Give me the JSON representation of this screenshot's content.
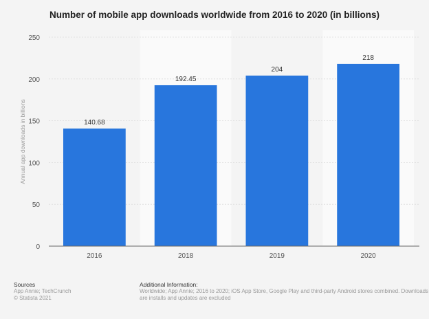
{
  "chart_data": {
    "type": "bar",
    "title": "Number of mobile app downloads worldwide from 2016 to 2020 (in billions)",
    "categories": [
      "2016",
      "2018",
      "2019",
      "2020"
    ],
    "values": [
      140.68,
      192.45,
      204,
      218
    ],
    "value_labels": [
      "140.68",
      "192.45",
      "204",
      "218"
    ],
    "xlabel": "",
    "ylabel": "Annual app downloads in billions",
    "ylim": [
      0,
      250
    ],
    "yticks": [
      0,
      50,
      100,
      150,
      200,
      250
    ],
    "grid": true,
    "bar_color": "#2876dd"
  },
  "footer": {
    "sources_heading": "Sources",
    "sources": "App Annie; TechCrunch",
    "copyright": "© Statista 2021",
    "info_heading": "Additional Information:",
    "info_text": "Worldwide; App Annie; 2016 to 2020; iOS App Store, Google Play and third-party Android stores combined. Downloads are installs and updates are excluded"
  }
}
